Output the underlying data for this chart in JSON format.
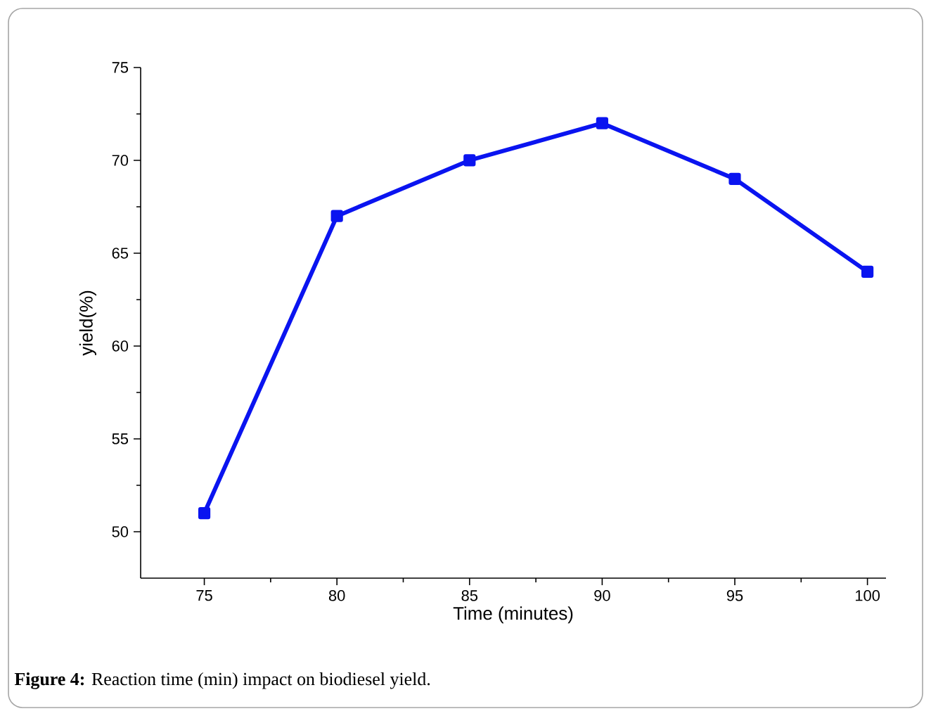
{
  "chart_data": {
    "type": "line",
    "xlabel": "Time (minutes)",
    "ylabel": "yield(%)",
    "x": [
      75,
      80,
      85,
      90,
      95,
      100
    ],
    "series": [
      {
        "color": "#0a14f0",
        "values": [
          51,
          67,
          70,
          72,
          69,
          64
        ]
      }
    ],
    "xlim": [
      72.6,
      100.7
    ],
    "ylim": [
      47.5,
      75
    ],
    "xticks": [
      75,
      80,
      85,
      90,
      95,
      100
    ],
    "yticks": [
      50,
      55,
      60,
      65,
      70,
      75
    ],
    "marker": "square",
    "line_style": "solid",
    "grid": false,
    "annotations": [
      "**Figure 4:** Reaction time (min) impact on biodiesel yield."
    ]
  }
}
